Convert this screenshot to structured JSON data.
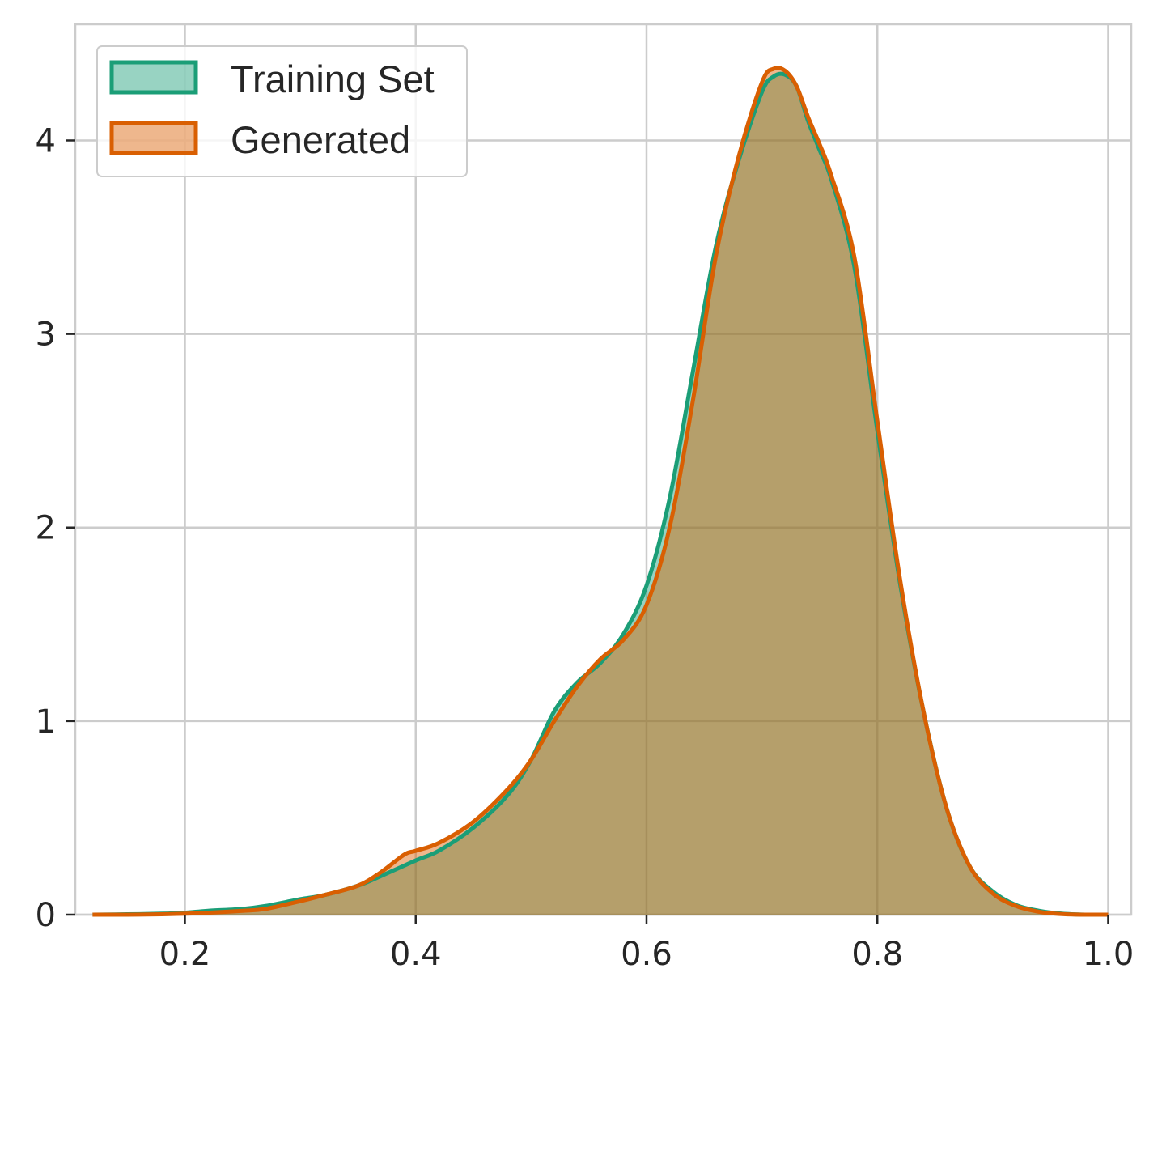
{
  "chart_data": {
    "type": "area",
    "title": "",
    "xlabel": "",
    "ylabel": "",
    "xlim": [
      0.105,
      1.02
    ],
    "ylim": [
      0,
      4.6
    ],
    "xticks": [
      0.2,
      0.4,
      0.6,
      0.8,
      1.0
    ],
    "xtick_labels": [
      "0.2",
      "0.4",
      "0.6",
      "0.8",
      "1.0"
    ],
    "yticks": [
      0,
      1,
      2,
      3,
      4
    ],
    "ytick_labels": [
      "0",
      "1",
      "2",
      "3",
      "4"
    ],
    "grid": true,
    "legend_position": "top-left",
    "series": [
      {
        "name": "Training Set",
        "color": "#1b9e77",
        "fill": "#1b9e77",
        "x": [
          0.12,
          0.15,
          0.18,
          0.2,
          0.22,
          0.25,
          0.27,
          0.3,
          0.32,
          0.35,
          0.37,
          0.4,
          0.42,
          0.45,
          0.48,
          0.5,
          0.52,
          0.54,
          0.56,
          0.58,
          0.6,
          0.62,
          0.64,
          0.66,
          0.68,
          0.7,
          0.71,
          0.72,
          0.73,
          0.74,
          0.75,
          0.76,
          0.78,
          0.8,
          0.82,
          0.84,
          0.86,
          0.88,
          0.9,
          0.92,
          0.94,
          0.96,
          0.98,
          1.0
        ],
        "y": [
          0,
          0.002,
          0.005,
          0.01,
          0.02,
          0.03,
          0.045,
          0.08,
          0.1,
          0.15,
          0.2,
          0.28,
          0.33,
          0.45,
          0.62,
          0.8,
          1.05,
          1.2,
          1.3,
          1.45,
          1.7,
          2.15,
          2.8,
          3.45,
          3.9,
          4.25,
          4.33,
          4.34,
          4.28,
          4.1,
          3.95,
          3.8,
          3.35,
          2.5,
          1.7,
          1.05,
          0.55,
          0.25,
          0.12,
          0.05,
          0.02,
          0.005,
          0,
          0
        ]
      },
      {
        "name": "Generated",
        "color": "#d95f02",
        "fill": "#d95f02",
        "x": [
          0.12,
          0.15,
          0.18,
          0.2,
          0.22,
          0.25,
          0.27,
          0.3,
          0.32,
          0.35,
          0.37,
          0.39,
          0.4,
          0.42,
          0.45,
          0.48,
          0.5,
          0.52,
          0.54,
          0.56,
          0.58,
          0.6,
          0.62,
          0.64,
          0.66,
          0.68,
          0.7,
          0.71,
          0.72,
          0.73,
          0.74,
          0.75,
          0.76,
          0.78,
          0.8,
          0.82,
          0.84,
          0.86,
          0.88,
          0.9,
          0.92,
          0.94,
          0.96,
          0.98,
          1.0
        ],
        "y": [
          0,
          0,
          0.002,
          0.005,
          0.01,
          0.02,
          0.03,
          0.07,
          0.1,
          0.15,
          0.22,
          0.31,
          0.33,
          0.37,
          0.48,
          0.65,
          0.8,
          1.0,
          1.18,
          1.32,
          1.42,
          1.6,
          2.0,
          2.65,
          3.4,
          3.92,
          4.3,
          4.37,
          4.36,
          4.28,
          4.12,
          3.98,
          3.82,
          3.4,
          2.55,
          1.72,
          1.05,
          0.55,
          0.25,
          0.11,
          0.045,
          0.015,
          0.003,
          0,
          0
        ]
      }
    ]
  }
}
